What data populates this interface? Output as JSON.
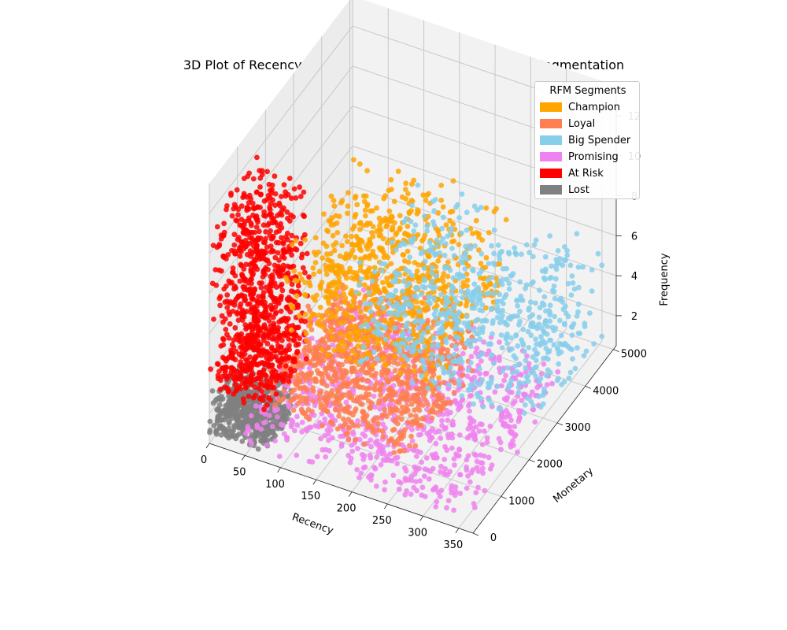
{
  "chart_data": {
    "type": "scatter",
    "projection": "3d",
    "title": "3D Plot of Recency, Monetary, and Frequency with RFM Segmentation",
    "xlabel": "Recency",
    "ylabel": "Monetary",
    "zlabel": "Frequency",
    "xlim": [
      0,
      370
    ],
    "ylim": [
      0,
      5100
    ],
    "zlim": [
      0.5,
      13.5
    ],
    "x_ticks": [
      "0",
      "50",
      "100",
      "150",
      "200",
      "250",
      "300",
      "350"
    ],
    "y_ticks": [
      "0",
      "1000",
      "2000",
      "3000",
      "4000",
      "5000"
    ],
    "z_ticks": [
      "2",
      "4",
      "6",
      "8",
      "10",
      "12"
    ],
    "grid": true,
    "legend": {
      "title": "RFM Segments",
      "placement": "top-right",
      "entries": [
        {
          "label": "Champion",
          "color": "#FFA500"
        },
        {
          "label": "Loyal",
          "color": "#FF7F50"
        },
        {
          "label": "Big Spender",
          "color": "#87CEEB"
        },
        {
          "label": "Promising",
          "color": "#EE82EE"
        },
        {
          "label": "At Risk",
          "color": "#FF0000"
        },
        {
          "label": "Lost",
          "color": "#808080"
        }
      ]
    },
    "series": [
      {
        "name": "Lost",
        "color": "#808080",
        "recency_range": [
          0,
          80
        ],
        "monetary_range": [
          0,
          1000
        ],
        "frequency_range": [
          1,
          3
        ],
        "count": 600
      },
      {
        "name": "Promising",
        "color": "#EE82EE",
        "recency_range": [
          40,
          360
        ],
        "monetary_range": [
          0,
          3500
        ],
        "frequency_range": [
          1,
          3
        ],
        "count": 1400
      },
      {
        "name": "Loyal",
        "color": "#FF7F50",
        "recency_range": [
          80,
          280
        ],
        "monetary_range": [
          0,
          2500
        ],
        "frequency_range": [
          3,
          6
        ],
        "count": 900
      },
      {
        "name": "At Risk",
        "color": "#FF0000",
        "recency_range": [
          0,
          80
        ],
        "monetary_range": [
          0,
          1600
        ],
        "frequency_range": [
          3,
          12
        ],
        "count": 1200
      },
      {
        "name": "Champion",
        "color": "#FFA500",
        "recency_range": [
          70,
          280
        ],
        "monetary_range": [
          800,
          3500
        ],
        "frequency_range": [
          5,
          10
        ],
        "count": 800
      },
      {
        "name": "Big Spender",
        "color": "#87CEEB",
        "recency_range": [
          100,
          360
        ],
        "monetary_range": [
          2500,
          5000
        ],
        "frequency_range": [
          1,
          6
        ],
        "count": 700
      }
    ]
  }
}
